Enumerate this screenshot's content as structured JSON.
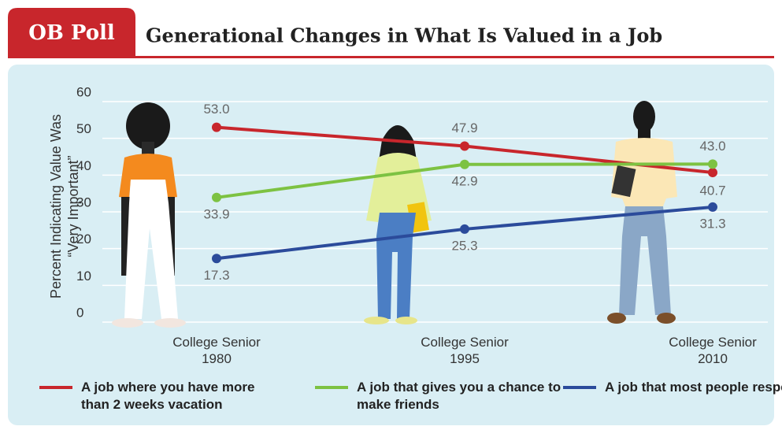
{
  "header": {
    "tag": "OB Poll"
  },
  "chart_data": {
    "type": "line",
    "title": "Generational Changes in What Is Valued in a Job",
    "y_label": "Percent Indicating Value Was “Very Important”",
    "categories": [
      "College Senior 1980",
      "College Senior 1995",
      "College Senior 2010"
    ],
    "ylim": [
      0,
      60
    ],
    "yticks": [
      0,
      10,
      20,
      30,
      40,
      50,
      60
    ],
    "grid": true,
    "legend": "bottom",
    "series": [
      {
        "name": "A job where you have more than 2 weeks vacation",
        "color": "#c8262c",
        "values": [
          53,
          47.9,
          40.7
        ],
        "value_labels": [
          "53.0",
          "47.9",
          "40.7"
        ]
      },
      {
        "name": "A job that gives you a chance to make friends",
        "color": "#7dc242",
        "values": [
          33.9,
          42.9,
          43
        ],
        "value_labels": [
          "33.9",
          "42.9",
          "43.0"
        ]
      },
      {
        "name": "A job that most people respect",
        "color": "#2b4b9b",
        "values": [
          17.3,
          25.3,
          31.3
        ],
        "value_labels": [
          "17.3",
          "25.3",
          "31.3"
        ]
      }
    ]
  }
}
